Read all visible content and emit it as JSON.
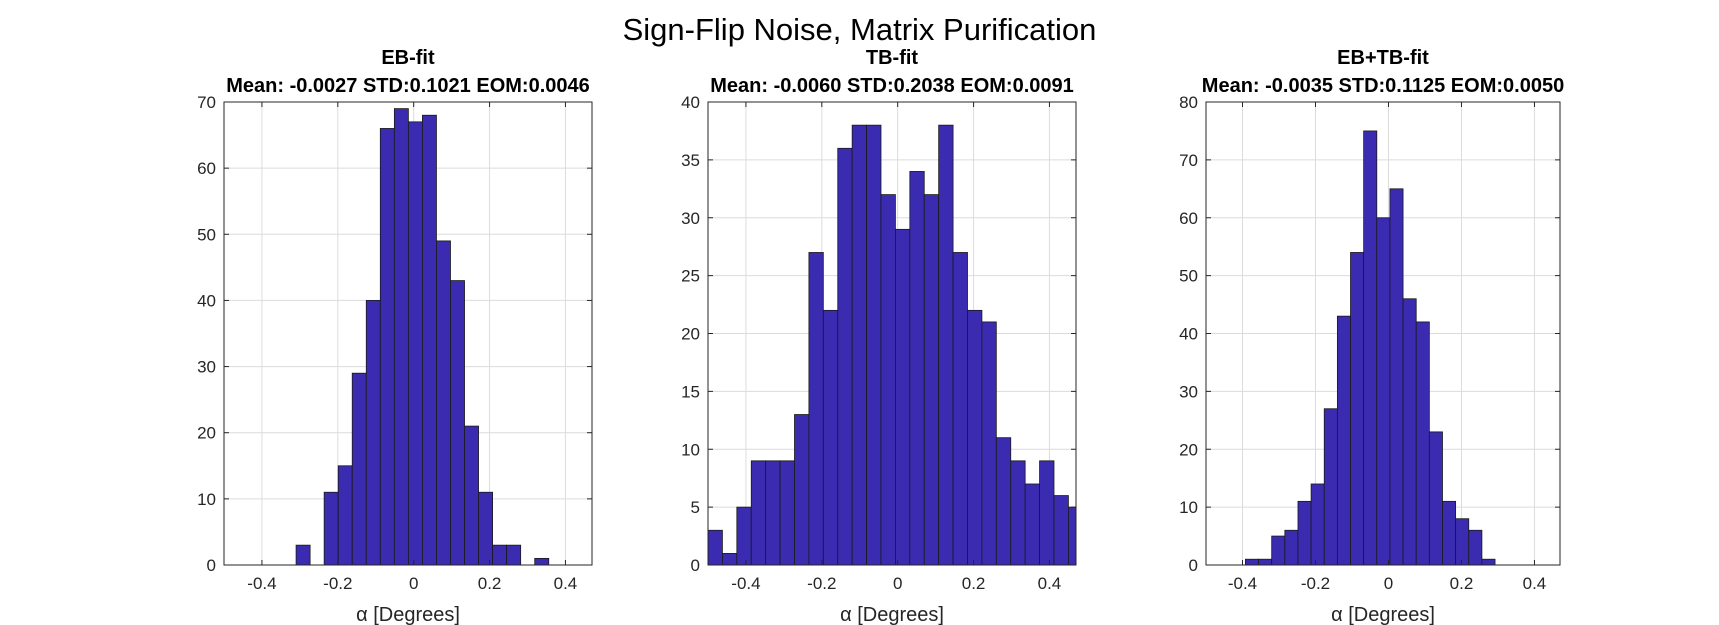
{
  "figure_title": "Sign-Flip Noise, Matrix Purification",
  "colors": {
    "bar_fill": "#3a2bb0",
    "bar_edge": "#1a1a1a",
    "grid": "#dcdcdc",
    "axis": "#262626"
  },
  "chart_data": [
    {
      "type": "bar",
      "title": "EB-fit",
      "subtitle": "Mean: -0.0027 STD:0.1021 EOM:0.0046",
      "xlabel": "α [Degrees]",
      "ylabel": "",
      "xlim": [
        -0.5,
        0.47
      ],
      "ylim": [
        0,
        70
      ],
      "xticks": [
        "-0.4",
        "-0.2",
        "0",
        "0.2",
        "0.4"
      ],
      "yticks": [
        "0",
        "10",
        "20",
        "30",
        "40",
        "50",
        "60",
        "70"
      ],
      "grid": true,
      "bins": [
        {
          "x0": -0.31,
          "x1": -0.273,
          "count": 3
        },
        {
          "x0": -0.236,
          "x1": -0.199,
          "count": 11
        },
        {
          "x0": -0.199,
          "x1": -0.162,
          "count": 15
        },
        {
          "x0": -0.162,
          "x1": -0.125,
          "count": 29
        },
        {
          "x0": -0.125,
          "x1": -0.088,
          "count": 40
        },
        {
          "x0": -0.088,
          "x1": -0.051,
          "count": 66
        },
        {
          "x0": -0.051,
          "x1": -0.014,
          "count": 69
        },
        {
          "x0": -0.014,
          "x1": 0.023,
          "count": 67
        },
        {
          "x0": 0.023,
          "x1": 0.06,
          "count": 68
        },
        {
          "x0": 0.06,
          "x1": 0.097,
          "count": 49
        },
        {
          "x0": 0.097,
          "x1": 0.134,
          "count": 43
        },
        {
          "x0": 0.134,
          "x1": 0.171,
          "count": 21
        },
        {
          "x0": 0.171,
          "x1": 0.208,
          "count": 11
        },
        {
          "x0": 0.208,
          "x1": 0.245,
          "count": 3
        },
        {
          "x0": 0.245,
          "x1": 0.282,
          "count": 3
        },
        {
          "x0": 0.319,
          "x1": 0.356,
          "count": 1
        }
      ]
    },
    {
      "type": "bar",
      "title": "TB-fit",
      "subtitle": "Mean: -0.0060 STD:0.2038 EOM:0.0091",
      "xlabel": "α [Degrees]",
      "ylabel": "",
      "xlim": [
        -0.5,
        0.47
      ],
      "ylim": [
        0,
        40
      ],
      "xticks": [
        "-0.4",
        "-0.2",
        "0",
        "0.2",
        "0.4"
      ],
      "yticks": [
        "0",
        "5",
        "10",
        "15",
        "20",
        "25",
        "30",
        "35",
        "40"
      ],
      "grid": true,
      "bins": [
        {
          "x0": -0.5,
          "x1": -0.462,
          "count": 3
        },
        {
          "x0": -0.462,
          "x1": -0.424,
          "count": 1
        },
        {
          "x0": -0.424,
          "x1": -0.386,
          "count": 5
        },
        {
          "x0": -0.386,
          "x1": -0.348,
          "count": 9
        },
        {
          "x0": -0.348,
          "x1": -0.31,
          "count": 9
        },
        {
          "x0": -0.31,
          "x1": -0.272,
          "count": 9
        },
        {
          "x0": -0.272,
          "x1": -0.234,
          "count": 13
        },
        {
          "x0": -0.234,
          "x1": -0.196,
          "count": 27
        },
        {
          "x0": -0.196,
          "x1": -0.158,
          "count": 22
        },
        {
          "x0": -0.158,
          "x1": -0.12,
          "count": 36
        },
        {
          "x0": -0.12,
          "x1": -0.082,
          "count": 38
        },
        {
          "x0": -0.082,
          "x1": -0.044,
          "count": 38
        },
        {
          "x0": -0.044,
          "x1": -0.006,
          "count": 32
        },
        {
          "x0": -0.006,
          "x1": 0.032,
          "count": 29
        },
        {
          "x0": 0.032,
          "x1": 0.07,
          "count": 34
        },
        {
          "x0": 0.07,
          "x1": 0.108,
          "count": 32
        },
        {
          "x0": 0.108,
          "x1": 0.146,
          "count": 38
        },
        {
          "x0": 0.146,
          "x1": 0.184,
          "count": 27
        },
        {
          "x0": 0.184,
          "x1": 0.222,
          "count": 22
        },
        {
          "x0": 0.222,
          "x1": 0.26,
          "count": 21
        },
        {
          "x0": 0.26,
          "x1": 0.298,
          "count": 11
        },
        {
          "x0": 0.298,
          "x1": 0.336,
          "count": 9
        },
        {
          "x0": 0.336,
          "x1": 0.374,
          "count": 7
        },
        {
          "x0": 0.374,
          "x1": 0.412,
          "count": 9
        },
        {
          "x0": 0.412,
          "x1": 0.45,
          "count": 6
        },
        {
          "x0": 0.45,
          "x1": 0.47,
          "count": 5
        }
      ]
    },
    {
      "type": "bar",
      "title": "EB+TB-fit",
      "subtitle": "Mean: -0.0035 STD:0.1125 EOM:0.0050",
      "xlabel": "α [Degrees]",
      "ylabel": "",
      "xlim": [
        -0.5,
        0.47
      ],
      "ylim": [
        0,
        80
      ],
      "xticks": [
        "-0.4",
        "-0.2",
        "0",
        "0.2",
        "0.4"
      ],
      "yticks": [
        "0",
        "10",
        "20",
        "30",
        "40",
        "50",
        "60",
        "70",
        "80"
      ],
      "grid": true,
      "bins": [
        {
          "x0": -0.392,
          "x1": -0.356,
          "count": 1
        },
        {
          "x0": -0.356,
          "x1": -0.32,
          "count": 1
        },
        {
          "x0": -0.32,
          "x1": -0.284,
          "count": 5
        },
        {
          "x0": -0.284,
          "x1": -0.248,
          "count": 6
        },
        {
          "x0": -0.248,
          "x1": -0.212,
          "count": 11
        },
        {
          "x0": -0.212,
          "x1": -0.176,
          "count": 14
        },
        {
          "x0": -0.176,
          "x1": -0.14,
          "count": 27
        },
        {
          "x0": -0.14,
          "x1": -0.104,
          "count": 43
        },
        {
          "x0": -0.104,
          "x1": -0.068,
          "count": 54
        },
        {
          "x0": -0.068,
          "x1": -0.032,
          "count": 75
        },
        {
          "x0": -0.032,
          "x1": 0.004,
          "count": 60
        },
        {
          "x0": 0.004,
          "x1": 0.04,
          "count": 65
        },
        {
          "x0": 0.04,
          "x1": 0.076,
          "count": 46
        },
        {
          "x0": 0.076,
          "x1": 0.112,
          "count": 42
        },
        {
          "x0": 0.112,
          "x1": 0.148,
          "count": 23
        },
        {
          "x0": 0.148,
          "x1": 0.184,
          "count": 11
        },
        {
          "x0": 0.184,
          "x1": 0.22,
          "count": 8
        },
        {
          "x0": 0.22,
          "x1": 0.256,
          "count": 6
        },
        {
          "x0": 0.256,
          "x1": 0.292,
          "count": 1
        }
      ]
    }
  ]
}
